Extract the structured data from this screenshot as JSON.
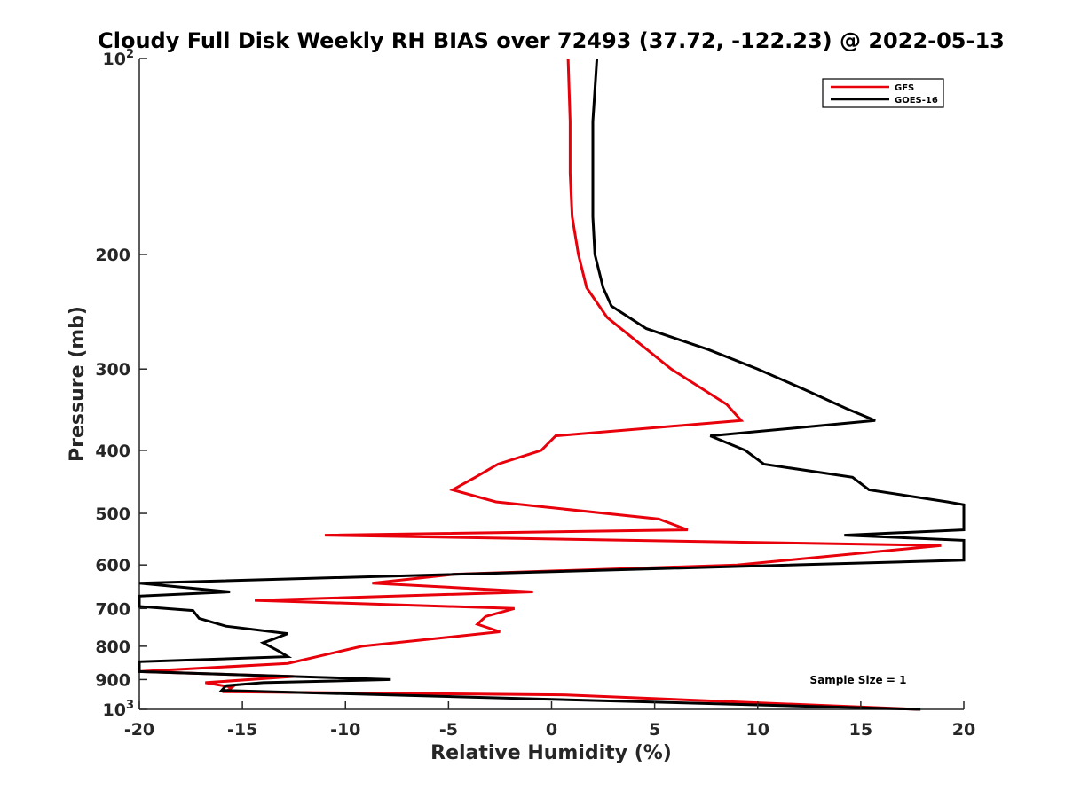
{
  "chart_data": {
    "type": "line",
    "title": "Cloudy Full Disk Weekly RH BIAS over 72493 (37.72, -122.23) @ 2022-05-13",
    "xlabel": "Relative Humidity (%)",
    "ylabel": "Pressure (mb)",
    "xlim": [
      -20,
      20
    ],
    "ylim": [
      100,
      1000
    ],
    "y_scale": "log",
    "y_reversed": true,
    "grid": false,
    "legend_position": "top-right",
    "x_ticks": [
      -20,
      -15,
      -10,
      -5,
      0,
      5,
      10,
      15,
      20
    ],
    "x_tick_labels": [
      "-20",
      "-15",
      "-10",
      "-5",
      "0",
      "5",
      "10",
      "15",
      "20"
    ],
    "y_ticks": [
      100,
      200,
      300,
      400,
      500,
      600,
      700,
      800,
      900,
      1000
    ],
    "y_tick_labels": [
      {
        "base": "10",
        "exp": "2"
      },
      {
        "base": "200"
      },
      {
        "base": "300"
      },
      {
        "base": "400"
      },
      {
        "base": "500"
      },
      {
        "base": "600"
      },
      {
        "base": "700"
      },
      {
        "base": "800"
      },
      {
        "base": "900"
      },
      {
        "base": "10",
        "exp": "3"
      }
    ],
    "annotation": "Sample Size = 1",
    "series": [
      {
        "name": "GFS",
        "color": "#e8000b",
        "points": [
          [
            0.8,
            100
          ],
          [
            0.9,
            125
          ],
          [
            0.9,
            150
          ],
          [
            1.0,
            175
          ],
          [
            1.3,
            200
          ],
          [
            1.7,
            225
          ],
          [
            2.7,
            250
          ],
          [
            5.8,
            300
          ],
          [
            8.5,
            340
          ],
          [
            9.2,
            360
          ],
          [
            0.2,
            380
          ],
          [
            -0.5,
            400
          ],
          [
            -2.6,
            420
          ],
          [
            -3.7,
            440
          ],
          [
            -4.8,
            460
          ],
          [
            -2.7,
            480
          ],
          [
            5.2,
            510
          ],
          [
            6.6,
            530
          ],
          [
            -11.0,
            540
          ],
          [
            18.9,
            560
          ],
          [
            9.0,
            600
          ],
          [
            -4.7,
            620
          ],
          [
            -8.7,
            640
          ],
          [
            -0.9,
            660
          ],
          [
            -14.4,
            680
          ],
          [
            -1.8,
            700
          ],
          [
            -3.2,
            720
          ],
          [
            -3.6,
            740
          ],
          [
            -2.5,
            760
          ],
          [
            -9.2,
            800
          ],
          [
            -12.8,
            850
          ],
          [
            -20.0,
            875
          ],
          [
            -12.5,
            890
          ],
          [
            -16.8,
            910
          ],
          [
            -15.5,
            925
          ],
          [
            -15.8,
            940
          ],
          [
            0.5,
            950
          ],
          [
            17.8,
            1000
          ]
        ]
      },
      {
        "name": "GOES-16",
        "color": "#000000",
        "points": [
          [
            2.2,
            100
          ],
          [
            2.0,
            125
          ],
          [
            2.0,
            150
          ],
          [
            2.0,
            175
          ],
          [
            2.1,
            200
          ],
          [
            2.5,
            225
          ],
          [
            2.9,
            240
          ],
          [
            4.6,
            260
          ],
          [
            7.6,
            280
          ],
          [
            10.0,
            300
          ],
          [
            12.5,
            325
          ],
          [
            14.3,
            345
          ],
          [
            15.7,
            360
          ],
          [
            7.7,
            380
          ],
          [
            9.4,
            400
          ],
          [
            10.3,
            420
          ],
          [
            14.6,
            440
          ],
          [
            15.4,
            460
          ],
          [
            19.2,
            480
          ],
          [
            20.0,
            485
          ],
          [
            20.0,
            530
          ],
          [
            14.2,
            540
          ],
          [
            20.0,
            550
          ],
          [
            20.0,
            590
          ],
          [
            -20.0,
            640
          ],
          [
            -15.6,
            660
          ],
          [
            -20.0,
            670
          ],
          [
            -20.0,
            695
          ],
          [
            -17.4,
            705
          ],
          [
            -17.1,
            725
          ],
          [
            -15.8,
            745
          ],
          [
            -12.8,
            765
          ],
          [
            -13.5,
            780
          ],
          [
            -14.0,
            790
          ],
          [
            -13.2,
            815
          ],
          [
            -12.8,
            830
          ],
          [
            -20.0,
            845
          ],
          [
            -20.0,
            875
          ],
          [
            -7.8,
            900
          ],
          [
            -14.0,
            910
          ],
          [
            -15.8,
            920
          ],
          [
            -16.0,
            935
          ],
          [
            17.9,
            1000
          ]
        ]
      }
    ]
  }
}
